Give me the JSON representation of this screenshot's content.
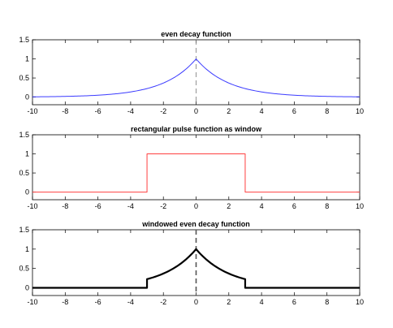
{
  "chart_data": [
    {
      "type": "line",
      "title": "even decay function",
      "xlim": [
        -10,
        10
      ],
      "ylim": [
        -0.2,
        1.5
      ],
      "xticks": [
        "-10",
        "-8",
        "-6",
        "-4",
        "-2",
        "0",
        "2",
        "4",
        "6",
        "8",
        "10"
      ],
      "yticks": [
        "0",
        "0.5",
        "1",
        "1.5"
      ],
      "grid": false,
      "series": [
        {
          "color": "#3b3bff",
          "x": [
            -10,
            -9,
            -8,
            -7,
            -6,
            -5,
            -4,
            -3,
            -2,
            -1,
            0,
            1,
            2,
            3,
            4,
            5,
            6,
            7,
            8,
            9,
            10
          ],
          "y": [
            0.007,
            0.011,
            0.018,
            0.03,
            0.05,
            0.082,
            0.135,
            0.223,
            0.368,
            0.607,
            1.0,
            0.607,
            0.368,
            0.223,
            0.135,
            0.082,
            0.05,
            0.03,
            0.018,
            0.011,
            0.007
          ]
        }
      ],
      "vline": {
        "x": 0,
        "style": "dashed",
        "color": "#777777"
      }
    },
    {
      "type": "line",
      "title": "rectangular pulse function as window",
      "xlim": [
        -10,
        10
      ],
      "ylim": [
        -0.2,
        1.5
      ],
      "xticks": [
        "-10",
        "-8",
        "-6",
        "-4",
        "-2",
        "0",
        "2",
        "4",
        "6",
        "8",
        "10"
      ],
      "yticks": [
        "0",
        "0.5",
        "1",
        "1.5"
      ],
      "grid": false,
      "series": [
        {
          "color": "#ff4040",
          "x": [
            -10,
            -3,
            -3,
            3,
            3,
            10
          ],
          "y": [
            0,
            0,
            1,
            1,
            0,
            0
          ]
        }
      ]
    },
    {
      "type": "line",
      "title": "windowed even decay function",
      "xlim": [
        -10,
        10
      ],
      "ylim": [
        -0.2,
        1.5
      ],
      "xticks": [
        "-10",
        "-8",
        "-6",
        "-4",
        "-2",
        "0",
        "2",
        "4",
        "6",
        "8",
        "10"
      ],
      "yticks": [
        "0",
        "0.5",
        "1",
        "1.5"
      ],
      "grid": false,
      "series": [
        {
          "color": "#000000",
          "x": [
            -10,
            -3,
            -3,
            -2.5,
            -2,
            -1.5,
            -1,
            -0.5,
            0,
            0.5,
            1,
            1.5,
            2,
            2.5,
            3,
            3,
            10
          ],
          "y": [
            0,
            0,
            0.223,
            0.287,
            0.368,
            0.472,
            0.607,
            0.779,
            1.0,
            0.779,
            0.607,
            0.472,
            0.368,
            0.287,
            0.223,
            0,
            0
          ]
        }
      ],
      "vline": {
        "x": 0,
        "style": "dashed",
        "color": "#555555"
      }
    }
  ]
}
